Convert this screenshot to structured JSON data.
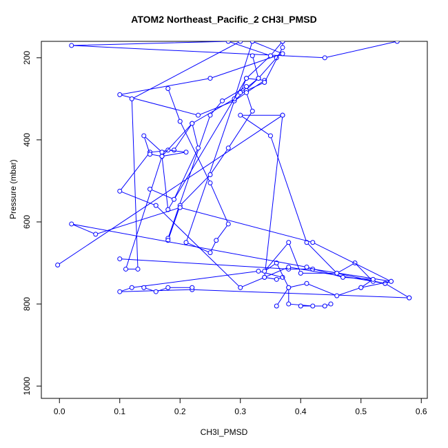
{
  "chart_data": {
    "type": "line",
    "title": "ATOM2 Northeast_Pacific_2 CH3I_PMSD",
    "xlabel": "CH3I_PMSD",
    "ylabel": "Pressure (mbar)",
    "xlim": [
      -0.03,
      0.61
    ],
    "ylim": [
      1030,
      160
    ],
    "y_reversed": true,
    "xticks": [
      0.0,
      0.1,
      0.2,
      0.3,
      0.4,
      0.5,
      0.6
    ],
    "yticks": [
      200,
      400,
      600,
      800,
      1000
    ],
    "xtick_labels": [
      "0.0",
      "0.1",
      "0.2",
      "0.3",
      "0.4",
      "0.5",
      "0.6"
    ],
    "ytick_labels": [
      "200",
      "400",
      "600",
      "800",
      "1000"
    ],
    "grid": false,
    "legend": "none",
    "series_color": "#0000ff",
    "series": [
      {
        "x": [
          0.32,
          0.37,
          0.25,
          0.1,
          0.23,
          0.29,
          0.33,
          0.36,
          0.28,
          0.02,
          0.44,
          0.56
        ],
        "y": [
          160,
          190,
          250,
          290,
          340,
          305,
          250,
          200,
          160,
          170,
          200,
          160
        ]
      },
      {
        "x": [
          0.18,
          0.2,
          0.25,
          0.28,
          0.26,
          0.25,
          0.21,
          0.29,
          0.34,
          0.31,
          0.3,
          0.33,
          0.32
        ],
        "y": [
          275,
          355,
          505,
          605,
          645,
          675,
          650,
          305,
          255,
          250,
          285,
          250,
          195
        ]
      },
      {
        "x": [
          0.37,
          0.37,
          0.34,
          0.31,
          0.31,
          0.27,
          0.25,
          0.18,
          0.18,
          0.2,
          0.25,
          0.28,
          0.32,
          0.31
        ],
        "y": [
          160,
          175,
          260,
          280,
          270,
          305,
          340,
          640,
          645,
          560,
          485,
          420,
          330,
          285
        ]
      },
      {
        "x": [
          0.32,
          0.29,
          0.22,
          0.19,
          0.15,
          0.1,
          0.16,
          0.3,
          0.34,
          0.37
        ],
        "y": [
          160,
          300,
          360,
          425,
          430,
          525,
          560,
          760,
          735,
          340
        ]
      },
      {
        "x": [
          0.37,
          0.35,
          0.31,
          0.18,
          0.17,
          0.21,
          0.18,
          0.17,
          0.14,
          0.15,
          0.17
        ],
        "y": [
          160,
          195,
          250,
          570,
          440,
          430,
          425,
          430,
          390,
          435,
          440
        ]
      },
      {
        "x": [
          0.15,
          0.19,
          0.23,
          0.22,
          0.17,
          0.11,
          0.13,
          0.12,
          0.3
        ],
        "y": [
          520,
          545,
          420,
          360,
          440,
          715,
          715,
          300,
          160
        ]
      },
      {
        "x": [
          -0.003,
          0.37,
          0.3,
          0.35,
          0.41,
          0.46,
          0.54,
          0.58
        ],
        "y": [
          705,
          340,
          340,
          390,
          650,
          725,
          750,
          785
        ]
      },
      {
        "x": [
          0.1,
          0.38,
          0.42,
          0.55,
          0.54,
          0.38,
          0.34,
          0.36,
          0.37,
          0.33,
          0.12,
          0.1,
          0.22,
          0.58
        ],
        "y": [
          690,
          715,
          715,
          745,
          750,
          710,
          735,
          740,
          735,
          720,
          760,
          770,
          765,
          785
        ]
      },
      {
        "x": [
          0.52,
          0.49,
          0.46,
          0.4,
          0.38,
          0.34,
          0.36,
          0.38,
          0.38,
          0.42,
          0.4,
          0.44,
          0.45
        ],
        "y": [
          745,
          700,
          725,
          725,
          650,
          720,
          700,
          760,
          800,
          805,
          805,
          805,
          800
        ]
      },
      {
        "x": [
          0.5,
          0.52,
          0.47,
          0.41,
          0.02,
          0.06,
          0.2,
          0.42,
          0.55,
          0.5,
          0.46,
          0.41,
          0.38,
          0.36
        ],
        "y": [
          760,
          740,
          735,
          710,
          605,
          630,
          565,
          650,
          745,
          760,
          780,
          750,
          760,
          805
        ]
      },
      {
        "x": [
          0.14,
          0.16,
          0.18,
          0.22
        ],
        "y": [
          760,
          770,
          760,
          760
        ]
      }
    ]
  }
}
